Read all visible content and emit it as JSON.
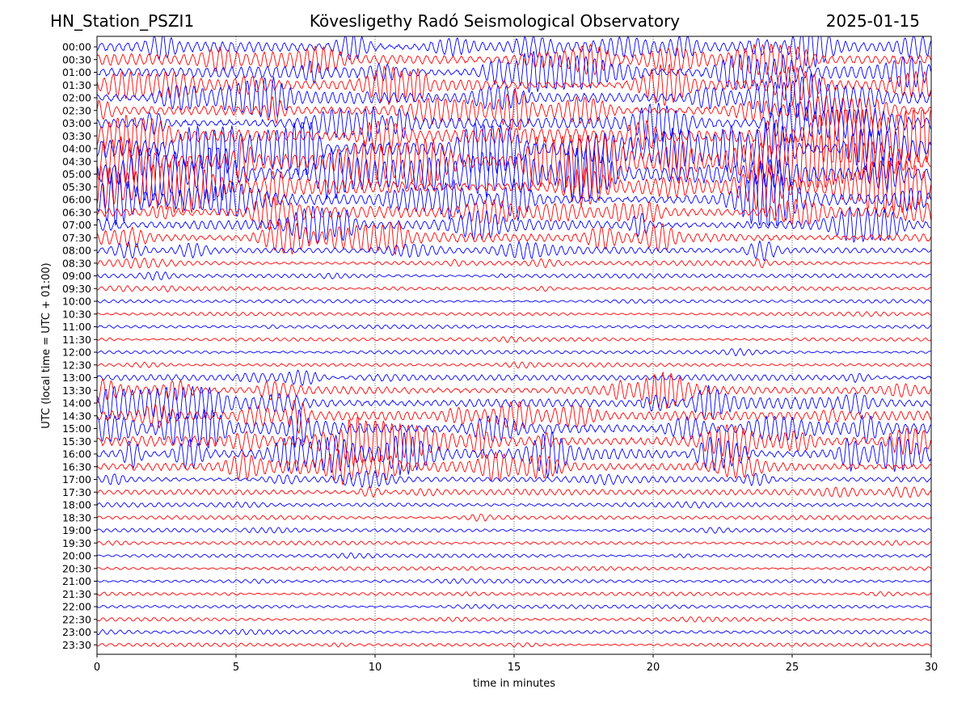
{
  "header": {
    "station": "HN_Station_PSZI1",
    "title": "Kövesligethy Radó Seismological Observatory",
    "date": "2025-01-15"
  },
  "chart_data": {
    "type": "line",
    "title": "Kövesligethy Radó Seismological Observatory",
    "xlabel": "time in minutes",
    "ylabel": "UTC (local time = UTC + 01:00)",
    "xlim": [
      0,
      30
    ],
    "x_ticks": [
      "0",
      "5",
      "10",
      "15",
      "20",
      "25",
      "30"
    ],
    "grid": "vertical dotted lines at each 5 minutes",
    "colors": [
      "#0000ff",
      "#ff0000"
    ],
    "rows": [
      {
        "label": "00:00",
        "activity": 0.55
      },
      {
        "label": "00:30",
        "activity": 0.55
      },
      {
        "label": "01:00",
        "activity": 0.6
      },
      {
        "label": "01:30",
        "activity": 0.6
      },
      {
        "label": "02:00",
        "activity": 0.6
      },
      {
        "label": "02:30",
        "activity": 0.6
      },
      {
        "label": "03:00",
        "activity": 0.7
      },
      {
        "label": "03:30",
        "activity": 0.85
      },
      {
        "label": "04:00",
        "activity": 0.95
      },
      {
        "label": "04:30",
        "activity": 1.0
      },
      {
        "label": "05:00",
        "activity": 1.0
      },
      {
        "label": "05:30",
        "activity": 0.85
      },
      {
        "label": "06:00",
        "activity": 0.7
      },
      {
        "label": "06:30",
        "activity": 0.55
      },
      {
        "label": "07:00",
        "activity": 0.55
      },
      {
        "label": "07:30",
        "activity": 0.5
      },
      {
        "label": "08:00",
        "activity": 0.3
      },
      {
        "label": "08:30",
        "activity": 0.15
      },
      {
        "label": "09:00",
        "activity": 0.12
      },
      {
        "label": "09:30",
        "activity": 0.08
      },
      {
        "label": "10:00",
        "activity": 0.06
      },
      {
        "label": "10:30",
        "activity": 0.06
      },
      {
        "label": "11:00",
        "activity": 0.06
      },
      {
        "label": "11:30",
        "activity": 0.08
      },
      {
        "label": "12:00",
        "activity": 0.08
      },
      {
        "label": "12:30",
        "activity": 0.08
      },
      {
        "label": "13:00",
        "activity": 0.25
      },
      {
        "label": "13:30",
        "activity": 0.45
      },
      {
        "label": "14:00",
        "activity": 0.55
      },
      {
        "label": "14:30",
        "activity": 0.5
      },
      {
        "label": "15:00",
        "activity": 0.6
      },
      {
        "label": "15:30",
        "activity": 0.7
      },
      {
        "label": "16:00",
        "activity": 0.65
      },
      {
        "label": "16:30",
        "activity": 0.5
      },
      {
        "label": "17:00",
        "activity": 0.25
      },
      {
        "label": "17:30",
        "activity": 0.25
      },
      {
        "label": "18:00",
        "activity": 0.12
      },
      {
        "label": "18:30",
        "activity": 0.1
      },
      {
        "label": "19:00",
        "activity": 0.08
      },
      {
        "label": "19:30",
        "activity": 0.07
      },
      {
        "label": "20:00",
        "activity": 0.07
      },
      {
        "label": "20:30",
        "activity": 0.07
      },
      {
        "label": "21:00",
        "activity": 0.07
      },
      {
        "label": "21:30",
        "activity": 0.07
      },
      {
        "label": "22:00",
        "activity": 0.06
      },
      {
        "label": "22:30",
        "activity": 0.06
      },
      {
        "label": "23:00",
        "activity": 0.06
      },
      {
        "label": "23:30",
        "activity": 0.06
      }
    ]
  }
}
